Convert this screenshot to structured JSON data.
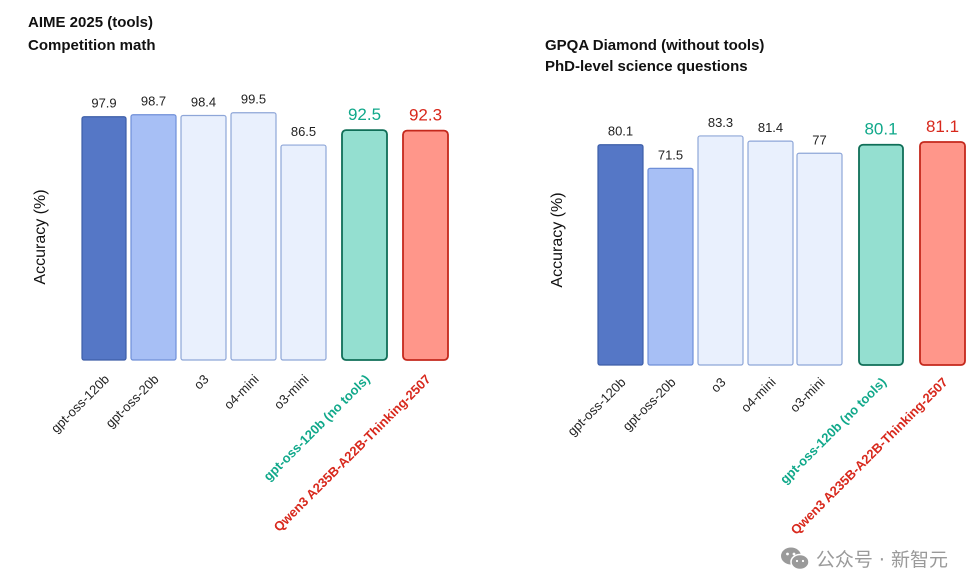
{
  "chart_data": [
    {
      "type": "bar",
      "title": "AIME 2025 (tools)",
      "subtitle": "Competition math",
      "xlabel": "",
      "ylabel": "Accuracy (%)",
      "ylim": [
        0,
        100
      ],
      "categories": [
        "gpt-oss-120b",
        "gpt-oss-20b",
        "o3",
        "o4-mini",
        "o3-mini",
        "gpt-oss-120b (no tools)",
        "Qwen3 A235B-A22B-Thinking-2507"
      ],
      "values": [
        97.9,
        98.7,
        98.4,
        99.5,
        86.5,
        92.5,
        92.3
      ],
      "value_labels": [
        "97.9",
        "98.7",
        "98.4",
        "99.5",
        "86.5",
        "92.5",
        "92.3"
      ]
    },
    {
      "type": "bar",
      "title": "GPQA Diamond (without tools)",
      "subtitle": "PhD-level science questions",
      "xlabel": "",
      "ylabel": "Accuracy (%)",
      "ylim": [
        0,
        100
      ],
      "categories": [
        "gpt-oss-120b",
        "gpt-oss-20b",
        "o3",
        "o4-mini",
        "o3-mini",
        "gpt-oss-120b (no tools)",
        "Qwen3 A235B-A22B-Thinking-2507"
      ],
      "values": [
        80.1,
        71.5,
        83.3,
        81.4,
        77,
        80.1,
        81.1
      ],
      "value_labels": [
        "80.1",
        "71.5",
        "83.3",
        "81.4",
        "77",
        "80.1",
        "81.1"
      ]
    }
  ],
  "styles": [
    {
      "fill": "#5577c6",
      "stroke": "#3d5ea8",
      "label_color": "#222222"
    },
    {
      "fill": "#a7bff5",
      "stroke": "#6f8fd8",
      "label_color": "#222222"
    },
    {
      "fill": "#e9f0fd",
      "stroke": "#8ea6d8",
      "label_color": "#222222"
    },
    {
      "fill": "#e9f0fd",
      "stroke": "#8ea6d8",
      "label_color": "#222222"
    },
    {
      "fill": "#e9f0fd",
      "stroke": "#8ea6d8",
      "label_color": "#222222"
    },
    {
      "fill": "#94dfd0",
      "stroke": "#0f6e57",
      "label_color": "#10a88a",
      "highlight": true
    },
    {
      "fill": "#ff968a",
      "stroke": "#c4281c",
      "label_color": "#d8281c",
      "highlight": true
    }
  ],
  "watermark": {
    "icon": "wechat-icon",
    "text": "公众号 · 新智元"
  }
}
